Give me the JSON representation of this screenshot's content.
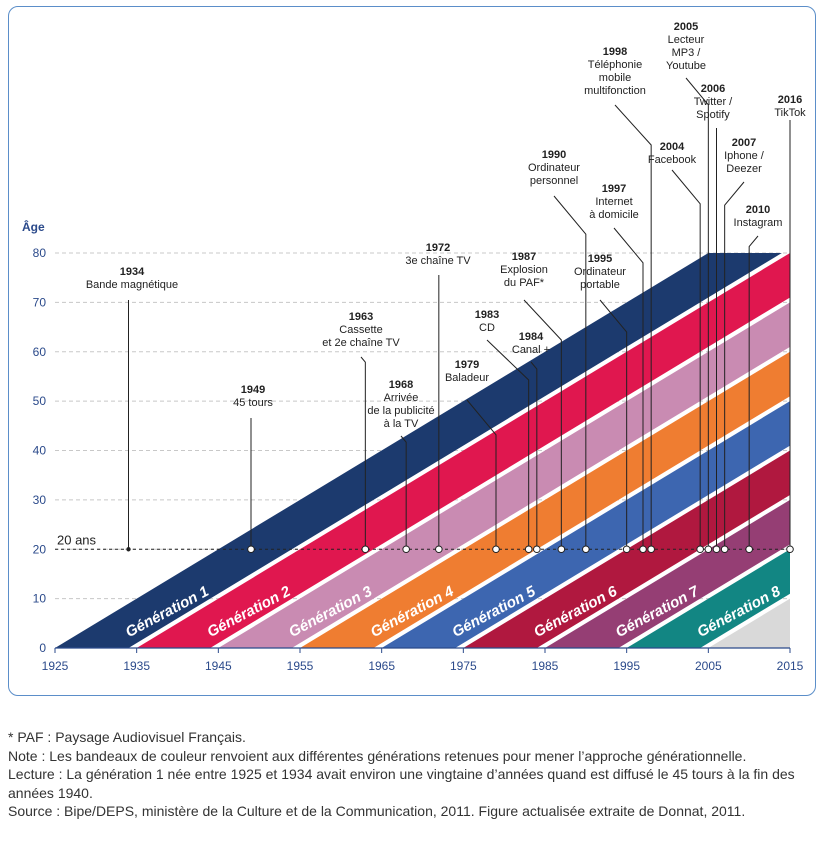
{
  "chart_data": {
    "type": "area",
    "title": "",
    "ylabel": "Âge",
    "xlabel": "",
    "xlim": [
      1925,
      2015
    ],
    "ylim": [
      0,
      80
    ],
    "xticks": [
      1925,
      1935,
      1945,
      1955,
      1965,
      1975,
      1985,
      1995,
      2005,
      2015
    ],
    "yticks": [
      0,
      10,
      20,
      30,
      40,
      50,
      60,
      70,
      80
    ],
    "reference_line": {
      "age": 20,
      "label": "20 ans"
    },
    "generations": [
      {
        "name": "Génération 1",
        "birth_start": 1925,
        "birth_end": 1934,
        "color": "#1c3a6e"
      },
      {
        "name": "Génération 2",
        "birth_start": 1935,
        "birth_end": 1944,
        "color": "#e0174f"
      },
      {
        "name": "Génération 3",
        "birth_start": 1945,
        "birth_end": 1954,
        "color": "#c98bb2"
      },
      {
        "name": "Génération 4",
        "birth_start": 1955,
        "birth_end": 1964,
        "color": "#ef7d31"
      },
      {
        "name": "Génération 5",
        "birth_start": 1965,
        "birth_end": 1974,
        "color": "#3d66b0"
      },
      {
        "name": "Génération 6",
        "birth_start": 1975,
        "birth_end": 1984,
        "color": "#b0183f"
      },
      {
        "name": "Génération 7",
        "birth_start": 1985,
        "birth_end": 1994,
        "color": "#953e74"
      },
      {
        "name": "Génération 8",
        "birth_start": 1995,
        "birth_end": 2004,
        "color": "#128683"
      },
      {
        "name": "",
        "birth_start": 2005,
        "birth_end": 2015,
        "color": "#d9d9d9"
      }
    ],
    "events": [
      {
        "year": 1934,
        "label_year": "1934",
        "text": [
          "Bande magnétique"
        ]
      },
      {
        "year": 1949,
        "label_year": "1949",
        "text": [
          "45 tours"
        ]
      },
      {
        "year": 1963,
        "label_year": "1963",
        "text": [
          "Cassette",
          "et 2e chaîne TV"
        ]
      },
      {
        "year": 1968,
        "label_year": "1968",
        "text": [
          "Arrivée",
          "de la publicité",
          "à la TV"
        ]
      },
      {
        "year": 1972,
        "label_year": "1972",
        "text": [
          "3e chaîne TV"
        ]
      },
      {
        "year": 1979,
        "label_year": "1979",
        "text": [
          "Baladeur"
        ]
      },
      {
        "year": 1983,
        "label_year": "1983",
        "text": [
          "CD"
        ]
      },
      {
        "year": 1984,
        "label_year": "1984",
        "text": [
          "Canal +"
        ]
      },
      {
        "year": 1987,
        "label_year": "1987",
        "text": [
          "Explosion",
          "du PAF*"
        ]
      },
      {
        "year": 1990,
        "label_year": "1990",
        "text": [
          "Ordinateur",
          "personnel"
        ]
      },
      {
        "year": 1995,
        "label_year": "1995",
        "text": [
          "Ordinateur",
          "portable"
        ]
      },
      {
        "year": 1997,
        "label_year": "1997",
        "text": [
          "Internet",
          "à domicile"
        ]
      },
      {
        "year": 1998,
        "label_year": "1998",
        "text": [
          "Téléphonie",
          "mobile",
          "multifonction"
        ]
      },
      {
        "year": 2004,
        "label_year": "2004",
        "text": [
          "Facebook"
        ]
      },
      {
        "year": 2005,
        "label_year": "2005",
        "text": [
          "Lecteur",
          "MP3 /",
          "Youtube"
        ]
      },
      {
        "year": 2006,
        "label_year": "2006",
        "text": [
          "Twitter /",
          "Spotify"
        ]
      },
      {
        "year": 2007,
        "label_year": "2007",
        "text": [
          "Iphone /",
          "Deezer"
        ]
      },
      {
        "year": 2010,
        "label_year": "2010",
        "text": [
          "Instagram"
        ]
      },
      {
        "year": 2016,
        "label_year": "2016",
        "text": [
          "TikTok"
        ]
      }
    ]
  },
  "notes": {
    "paf": "* PAF : Paysage Audiovisuel Français.",
    "note": "Note : Les bandeaux de couleur renvoient aux différentes générations retenues pour mener l’approche générationnelle.",
    "lecture": "Lecture : La génération 1 née entre 1925 et 1934 avait environ une vingtaine d’années quand est diffusé le 45 tours à la fin des années 1940.",
    "source": "Source : Bipe/DEPS, ministère de la Culture et de la Communication, 2011. Figure actualisée extraite de Donnat, 2011."
  }
}
